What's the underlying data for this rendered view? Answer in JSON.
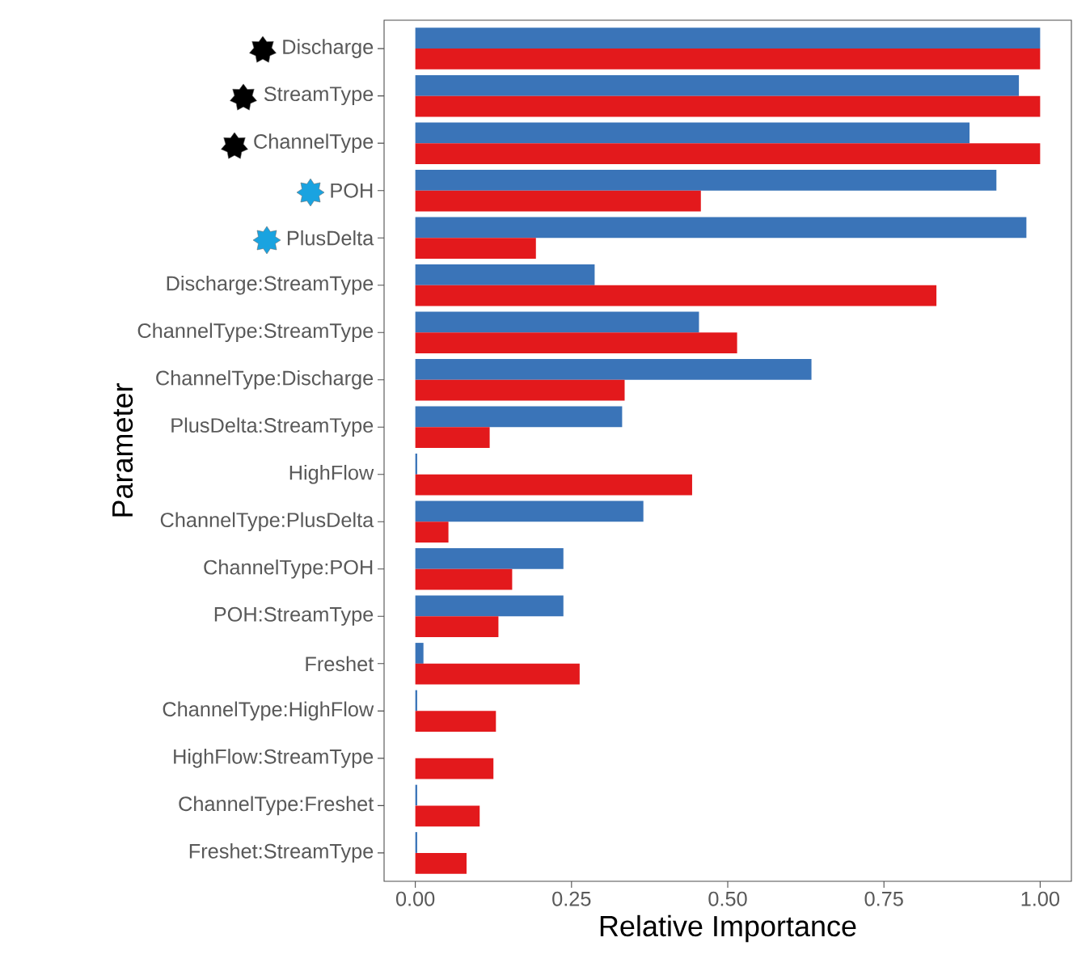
{
  "chart_data": {
    "type": "bar",
    "orientation": "horizontal",
    "xlabel": "Relative Importance",
    "ylabel": "Parameter",
    "categories": [
      "Discharge",
      "StreamType",
      "ChannelType",
      "POH",
      "PlusDelta",
      "Discharge:StreamType",
      "ChannelType:StreamType",
      "ChannelType:Discharge",
      "PlusDelta:StreamType",
      "HighFlow",
      "ChannelType:PlusDelta",
      "ChannelType:POH",
      "POH:StreamType",
      "Freshet",
      "ChannelType:HighFlow",
      "HighFlow:StreamType",
      "ChannelType:Freshet",
      "Freshet:StreamType"
    ],
    "series": [
      {
        "color": "#3a74b8",
        "values": [
          1.0,
          0.966,
          0.887,
          0.93,
          0.978,
          0.287,
          0.454,
          0.634,
          0.331,
          0.003,
          0.365,
          0.237,
          0.237,
          0.013,
          0.003,
          0.0,
          0.003,
          0.003
        ]
      },
      {
        "color": "#e3191c",
        "values": [
          1.0,
          1.0,
          1.0,
          0.457,
          0.193,
          0.834,
          0.515,
          0.335,
          0.119,
          0.443,
          0.053,
          0.155,
          0.133,
          0.263,
          0.129,
          0.125,
          0.103,
          0.082
        ]
      }
    ],
    "xlim": [
      -0.05,
      1.05
    ],
    "xticks": [
      {
        "value": 0,
        "label": "0.00"
      },
      {
        "value": 0.25,
        "label": "0.25"
      },
      {
        "value": 0.5,
        "label": "0.50"
      },
      {
        "value": 0.75,
        "label": "0.75"
      },
      {
        "value": 1,
        "label": "1.00"
      }
    ],
    "grid": false
  }
}
